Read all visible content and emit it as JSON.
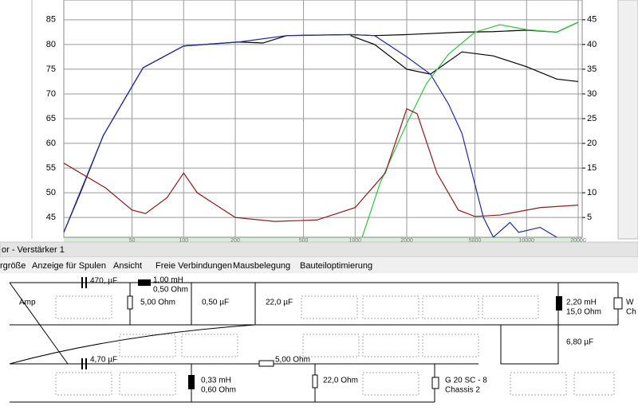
{
  "chart_data": {
    "type": "line",
    "log_x": true,
    "grid": true,
    "xlim": [
      20,
      20000
    ],
    "xticks": [
      50,
      100,
      200,
      500,
      1000,
      2000,
      5000,
      10000,
      20000
    ],
    "ylim": [
      41,
      89
    ],
    "yticks": [
      45,
      50,
      55,
      60,
      65,
      70,
      75,
      80,
      85
    ],
    "y2lim": [
      1,
      49
    ],
    "y2ticks": [
      5,
      10,
      15,
      20,
      25,
      30,
      35,
      40,
      45
    ],
    "series": [
      {
        "color": "#000000",
        "x": [
          20,
          25,
          34,
          58,
          100,
          210,
          290,
          400,
          940,
          1300,
          2000,
          4200,
          6400,
          10000,
          15000,
          20000
        ],
        "values": [
          42,
          50,
          61.6,
          75.3,
          79.7,
          80.5,
          80.3,
          81.8,
          82,
          81.8,
          82,
          82.5,
          82.6,
          82.9,
          82.5,
          84.5
        ]
      },
      {
        "color": "#000000",
        "x": [
          940,
          1300,
          2000,
          2750,
          4200,
          6400,
          10000,
          15000,
          20000
        ],
        "values": [
          81.8,
          80,
          75,
          74,
          78.5,
          77.7,
          75.5,
          73,
          72.5
        ]
      },
      {
        "color": "#1f2a9c",
        "x": [
          20,
          34,
          58,
          100,
          210,
          400,
          940,
          1300,
          2000,
          2750,
          3500,
          4200,
          5600,
          6400,
          8000,
          9000,
          12000,
          15000
        ],
        "values": [
          42,
          61.6,
          75.3,
          79.7,
          80.5,
          81.8,
          82,
          81.8,
          77.5,
          74,
          68,
          62,
          45,
          41,
          44,
          42,
          43,
          41
        ]
      },
      {
        "color": "#2fc43a",
        "x": [
          1100,
          1400,
          2000,
          2600,
          3500,
          5000,
          7000,
          10000,
          15000,
          20000
        ],
        "values": [
          41,
          52,
          64,
          72,
          78,
          82.5,
          84,
          83,
          82.5,
          84.5
        ]
      },
      {
        "color": "#8b1a1a",
        "axis": "y2",
        "x": [
          20,
          35,
          50,
          60,
          80,
          100,
          120,
          200,
          340,
          600,
          1000,
          1500,
          2000,
          2300,
          3000,
          4000,
          5000,
          7000,
          12000,
          20000
        ],
        "values": [
          16,
          11,
          6.5,
          5.8,
          9,
          14,
          10,
          5,
          4.2,
          4.5,
          7,
          14,
          27,
          26,
          14,
          6.5,
          5.2,
          5.5,
          7,
          7.5
        ]
      }
    ]
  },
  "window_title": "or - Verstärker 1",
  "menu": [
    "rgröße",
    "Anzeige für Spulen",
    "Ansicht",
    "Freie Verbindungen",
    "Mausbelegung",
    "Bauteiloptimierung"
  ],
  "circuit": {
    "labels": [
      "470, µF",
      "1,00 mH",
      "0,50 Ohm",
      "5,00 Ohm",
      "0,50 µF",
      "22,0 µF",
      "2,20 mH",
      "15,0 Ohm",
      "W",
      "Ch",
      "Amp",
      "6,80 µF",
      "4,70 µF",
      "5,00 Ohm",
      "0,33 mH",
      "0,60 Ohm",
      "22,0 Ohm",
      "G 20 SC - 8",
      "Chassis 2"
    ]
  }
}
